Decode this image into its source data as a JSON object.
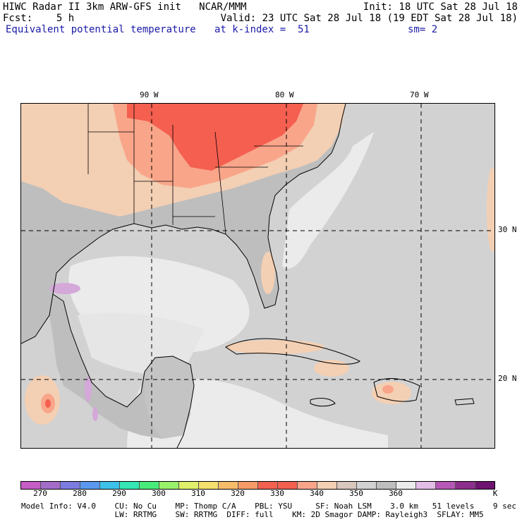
{
  "header": {
    "line1_left": "HIWC Radar II 3km ARW-GFS init   NCAR/MMM",
    "line1_right": "Init: 18 UTC Sat 28 Jul 18",
    "line2_left": "Fcst:    5 h",
    "line2_right": "Valid: 23 UTC Sat 28 Jul 18 (19 EDT Sat 28 Jul 18)",
    "field_name": "Equivalent potential temperature",
    "level": "at k-index =  51",
    "smoothing": "sm= 2"
  },
  "map": {
    "lon_labels": [
      "90 W",
      "80 W",
      "70 W"
    ],
    "lat_labels": [
      "30 N",
      "20 N"
    ],
    "colors": {
      "ocean_gray": "#d2d2d2",
      "land_gray": "#bebebe",
      "light_gray": "#ebebeb",
      "tan": "#f3cfb3",
      "salmon": "#f9a58a",
      "red": "#f45f50",
      "purple": "#d4a8d8"
    }
  },
  "colorbar": {
    "colors": [
      "#c65ec6",
      "#a26cc8",
      "#7b7be0",
      "#5a97ef",
      "#3cc1e8",
      "#33e6b4",
      "#48ec7a",
      "#99f06a",
      "#dff06a",
      "#f3de6e",
      "#f7bc6a",
      "#f69a68",
      "#f4614f",
      "#f45f50",
      "#f9a58a",
      "#f3cfb3",
      "#d9c6bc",
      "#d2d2d2",
      "#bebebe",
      "#ebebeb",
      "#e3bde5",
      "#b658b6",
      "#8c2f8c",
      "#6e1370"
    ],
    "labels": [
      "270",
      "280",
      "290",
      "300",
      "310",
      "320",
      "330",
      "340",
      "350",
      "360"
    ],
    "unit": "K"
  },
  "footer": {
    "line1": "Model Info: V4.0    CU: No Cu    MP: Thomp C/A    PBL: YSU     SF: Noah LSM    3.0 km   51 levels    9 sec",
    "line2": "                    LW: RRTMG    SW: RRTMG  DIFF: full    KM: 2D Smagor DAMP: Rayleigh3  SFLAY: MM5"
  }
}
